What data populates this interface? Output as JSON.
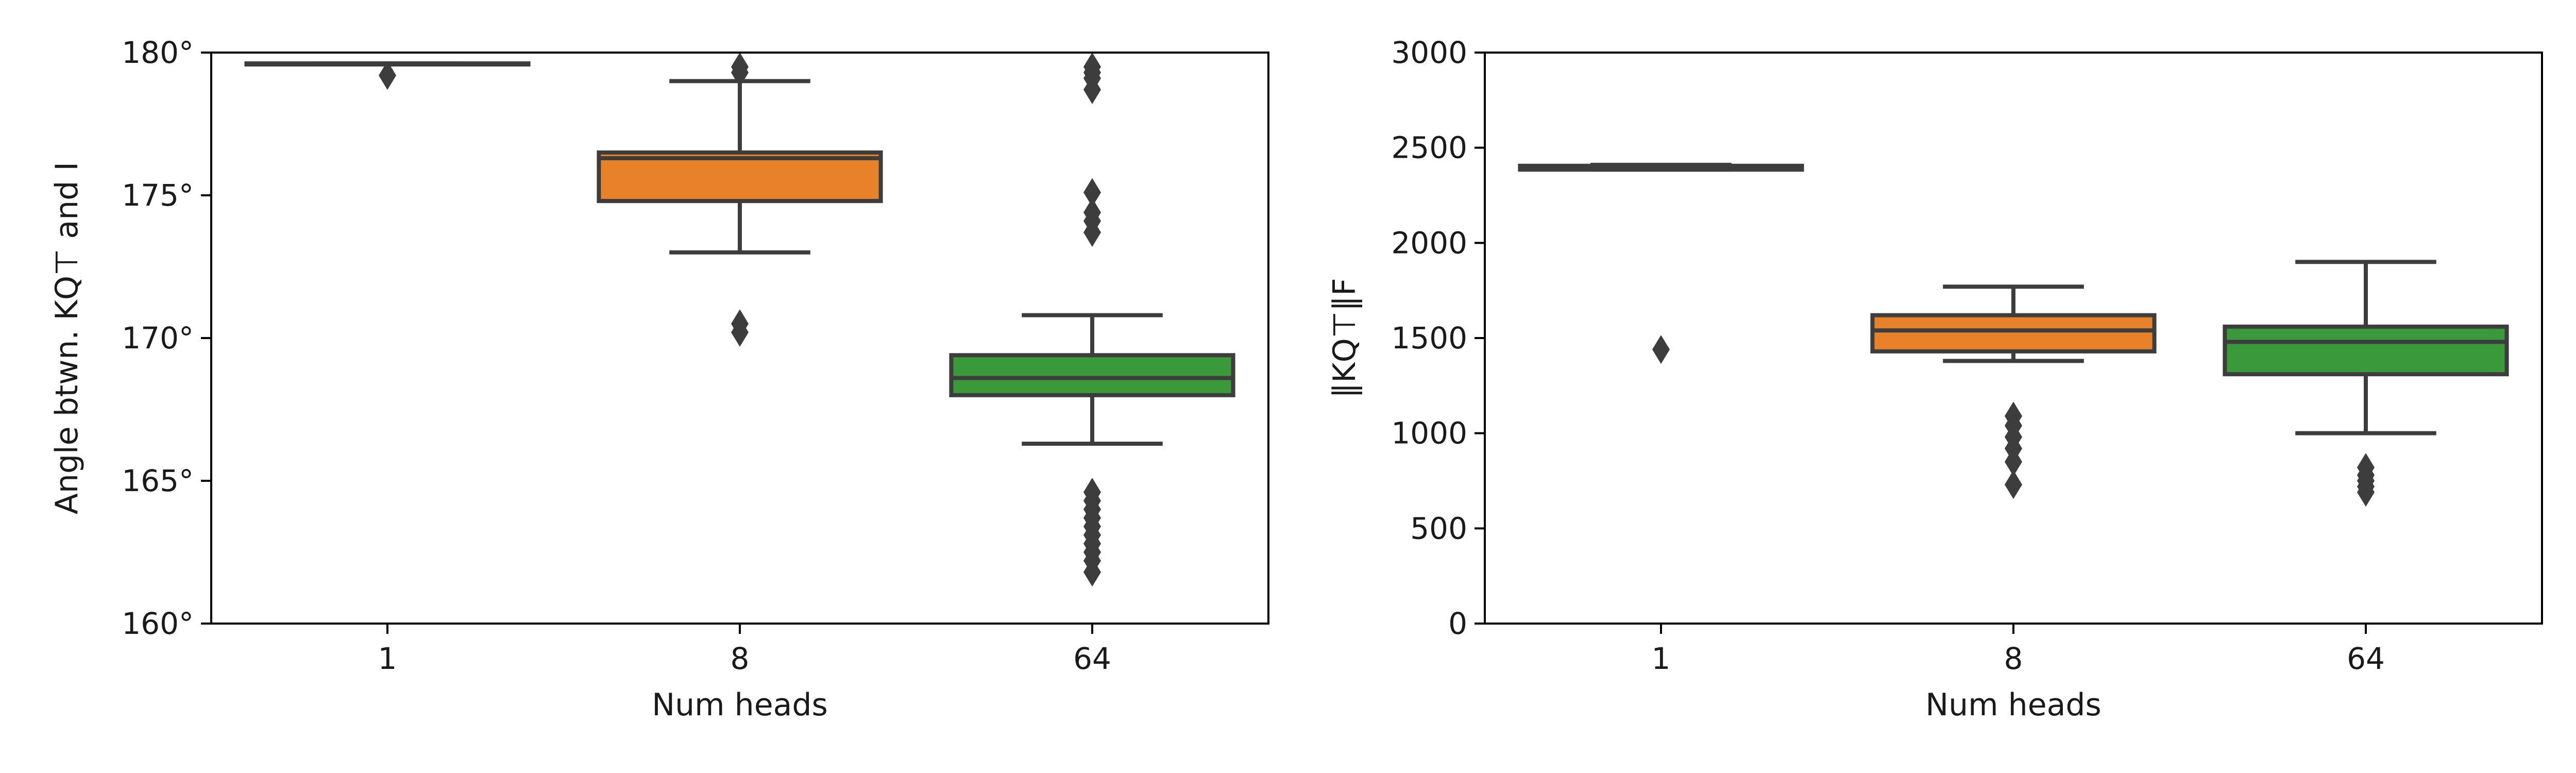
{
  "chart_data": [
    {
      "type": "box",
      "xlabel": "Num heads",
      "ylabel": "Angle btwn.  KQ⊤ and I",
      "categories": [
        "1",
        "8",
        "64"
      ],
      "ylim": [
        160,
        180
      ],
      "yticks": [
        160,
        165,
        170,
        175,
        180
      ],
      "ytick_labels": [
        "160°",
        "165°",
        "170°",
        "175°",
        "180°"
      ],
      "grid": false,
      "legend": "none",
      "boxes": [
        {
          "category": "1",
          "color": "#1f77b4",
          "whislo": 179.6,
          "q1": 179.6,
          "med": 179.6,
          "q3": 179.62,
          "whishi": 179.62,
          "fliers": [
            179.2
          ]
        },
        {
          "category": "8",
          "color": "#e8822a",
          "whislo": 173.0,
          "q1": 174.8,
          "med": 176.3,
          "q3": 176.5,
          "whishi": 179.0,
          "fliers": [
            179.3,
            179.5,
            170.2,
            170.5
          ]
        },
        {
          "category": "64",
          "color": "#3a9a3a",
          "whislo": 166.3,
          "q1": 168.0,
          "med": 168.6,
          "q3": 169.4,
          "whishi": 170.8,
          "fliers": [
            179.5,
            179.3,
            179.1,
            178.7,
            175.1,
            174.4,
            174.1,
            173.7,
            164.6,
            164.3,
            164.0,
            163.7,
            163.4,
            163.1,
            162.8,
            162.5,
            162.2,
            161.8
          ]
        }
      ]
    },
    {
      "type": "box",
      "xlabel": "Num heads",
      "ylabel": "‖KQ⊤‖F",
      "categories": [
        "1",
        "8",
        "64"
      ],
      "ylim": [
        0,
        3000
      ],
      "yticks": [
        0,
        500,
        1000,
        1500,
        2000,
        2500,
        3000
      ],
      "ytick_labels": [
        "0",
        "500",
        "1000",
        "1500",
        "2000",
        "2500",
        "3000"
      ],
      "grid": false,
      "legend": "none",
      "boxes": [
        {
          "category": "1",
          "color": "#1f77b4",
          "whislo": 2385,
          "q1": 2385,
          "med": 2395,
          "q3": 2405,
          "whishi": 2410,
          "fliers": [
            1440
          ]
        },
        {
          "category": "8",
          "color": "#e8822a",
          "whislo": 1380,
          "q1": 1430,
          "med": 1540,
          "q3": 1620,
          "whishi": 1770,
          "fliers": [
            1090,
            1040,
            980,
            920,
            850,
            730
          ]
        },
        {
          "category": "64",
          "color": "#3a9a3a",
          "whislo": 1000,
          "q1": 1310,
          "med": 1480,
          "q3": 1560,
          "whishi": 1900,
          "fliers": [
            820,
            780,
            750,
            720,
            690
          ]
        }
      ]
    }
  ]
}
